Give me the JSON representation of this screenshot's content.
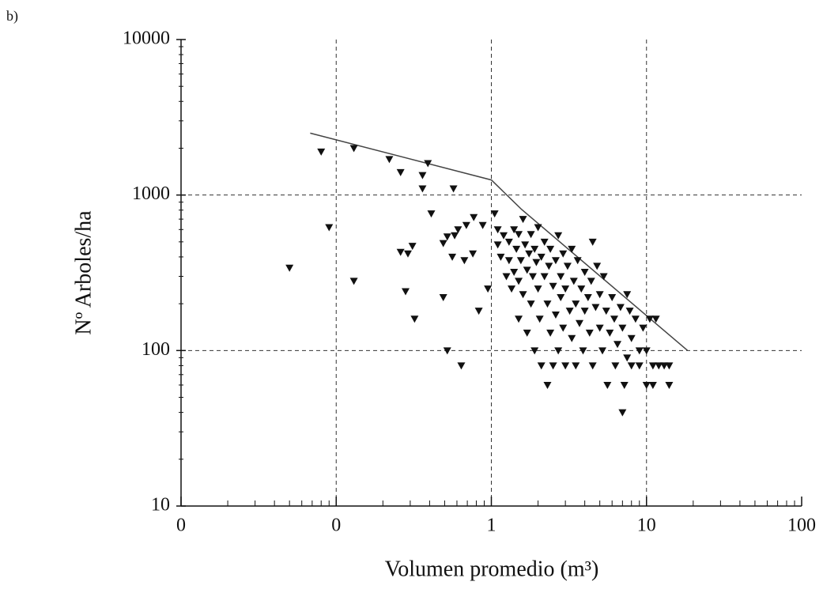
{
  "chart_data": {
    "type": "scatter",
    "panel_label": "b)",
    "xlabel": "Volumen promedio (m³)",
    "ylabel": "Nº Arboles/ha",
    "xscale": "log",
    "yscale": "log",
    "grid": true,
    "color": "#111111",
    "xlim": [
      0.01,
      100
    ],
    "xticks": [
      {
        "value": 0.01,
        "label": "0"
      },
      {
        "value": 0.1,
        "label": "0"
      },
      1,
      10,
      100
    ],
    "ylim": [
      10,
      10000
    ],
    "yticks": [
      10,
      100,
      1000,
      10000
    ],
    "x": [
      0.05,
      0.08,
      0.09,
      0.13,
      0.13,
      0.22,
      0.26,
      0.36,
      0.39,
      0.36,
      0.41,
      0.57,
      0.26,
      0.29,
      0.31,
      0.28,
      0.32,
      0.49,
      0.52,
      0.49,
      0.52,
      0.64,
      0.58,
      0.61,
      0.69,
      0.77,
      0.83,
      0.56,
      0.67,
      0.76,
      0.88,
      0.95,
      1.05,
      1.1,
      1.1,
      1.15,
      1.2,
      1.25,
      1.3,
      1.3,
      1.35,
      1.4,
      1.4,
      1.45,
      1.5,
      1.5,
      1.5,
      1.55,
      1.6,
      1.6,
      1.65,
      1.7,
      1.7,
      1.75,
      1.8,
      1.8,
      1.85,
      1.9,
      1.9,
      1.95,
      2.0,
      2.0,
      2.05,
      2.1,
      2.1,
      2.2,
      2.2,
      2.3,
      2.3,
      2.35,
      2.4,
      2.4,
      2.5,
      2.5,
      2.6,
      2.6,
      2.7,
      2.7,
      2.8,
      2.8,
      2.9,
      2.9,
      3.0,
      3.0,
      3.1,
      3.2,
      3.3,
      3.3,
      3.4,
      3.5,
      3.5,
      3.6,
      3.7,
      3.8,
      3.9,
      4.0,
      4.0,
      4.2,
      4.3,
      4.4,
      4.5,
      4.5,
      4.7,
      4.8,
      5.0,
      5.0,
      5.2,
      5.3,
      5.5,
      5.6,
      5.8,
      6.0,
      6.2,
      6.3,
      6.5,
      6.8,
      7.0,
      7.0,
      7.2,
      7.5,
      7.5,
      7.8,
      8.0,
      8.0,
      8.5,
      9.0,
      9.0,
      9.5,
      10,
      10,
      10.5,
      11,
      11,
      11.5,
      12,
      13,
      14,
      14
    ],
    "values": [
      340,
      1900,
      620,
      2000,
      280,
      1700,
      1400,
      1340,
      1600,
      1100,
      760,
      1100,
      430,
      420,
      470,
      240,
      160,
      490,
      540,
      220,
      100,
      80,
      550,
      600,
      640,
      720,
      180,
      400,
      380,
      420,
      640,
      250,
      760,
      600,
      480,
      400,
      550,
      300,
      500,
      380,
      250,
      600,
      320,
      450,
      560,
      280,
      160,
      380,
      700,
      230,
      480,
      330,
      130,
      420,
      560,
      200,
      300,
      450,
      100,
      370,
      250,
      620,
      160,
      400,
      80,
      300,
      500,
      200,
      60,
      350,
      130,
      450,
      260,
      80,
      380,
      170,
      550,
      100,
      300,
      220,
      420,
      140,
      250,
      80,
      350,
      180,
      450,
      120,
      280,
      200,
      80,
      380,
      150,
      250,
      100,
      320,
      180,
      220,
      130,
      280,
      500,
      80,
      190,
      350,
      140,
      230,
      100,
      300,
      180,
      60,
      130,
      220,
      160,
      80,
      110,
      190,
      140,
      40,
      60,
      230,
      90,
      180,
      120,
      80,
      160,
      100,
      80,
      140,
      100,
      60,
      160,
      80,
      60,
      160,
      80,
      80,
      60,
      80
    ],
    "fit_line": {
      "x": [
        0.068,
        1,
        1.57,
        18.4
      ],
      "values": [
        2500,
        1250,
        807,
        100
      ]
    }
  }
}
